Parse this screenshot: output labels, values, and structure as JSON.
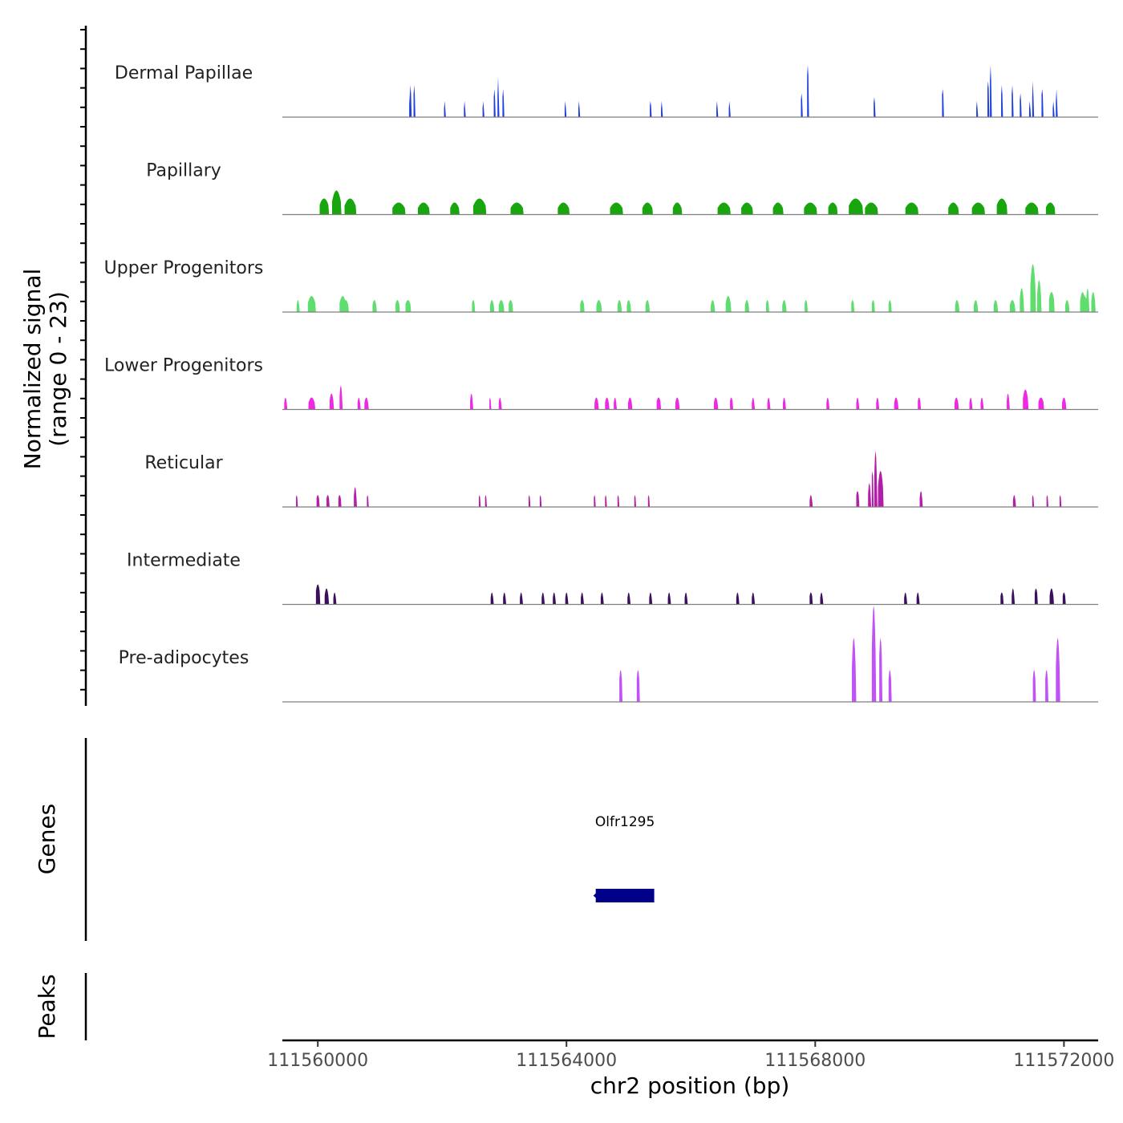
{
  "chart_data": {
    "type": "area",
    "title": "",
    "ylabel_line1": "Normalized signal",
    "ylabel_line2": "(range 0 - 23)",
    "xlabel": "chr2 position (bp)",
    "xlim": [
      111559430,
      111572550
    ],
    "ylim": [
      0,
      23
    ],
    "x_ticks": [
      111560000,
      111564000,
      111568000,
      111572000
    ],
    "x_tick_labels": [
      "111560000",
      "111564000",
      "111568000",
      "111572000"
    ],
    "tracks": [
      {
        "name": "Dermal Papillae",
        "color": "#1e3fdc",
        "peaks": [
          [
            111561480,
            30,
            4
          ],
          [
            111561490,
            25,
            8
          ],
          [
            111561550,
            25,
            8
          ],
          [
            111562040,
            20,
            4
          ],
          [
            111562360,
            20,
            4
          ],
          [
            111562660,
            20,
            4
          ],
          [
            111562840,
            25,
            7
          ],
          [
            111562900,
            20,
            10
          ],
          [
            111562980,
            25,
            7
          ],
          [
            111563980,
            20,
            4
          ],
          [
            111564200,
            20,
            4
          ],
          [
            111565350,
            25,
            4
          ],
          [
            111565530,
            20,
            4
          ],
          [
            111566420,
            20,
            4
          ],
          [
            111566620,
            20,
            4
          ],
          [
            111567780,
            25,
            6
          ],
          [
            111567880,
            30,
            13
          ],
          [
            111568950,
            25,
            5
          ],
          [
            111570050,
            30,
            7
          ],
          [
            111570600,
            20,
            4
          ],
          [
            111570780,
            30,
            9
          ],
          [
            111570820,
            25,
            13
          ],
          [
            111571000,
            25,
            8
          ],
          [
            111571170,
            25,
            8
          ],
          [
            111571300,
            25,
            6
          ],
          [
            111571450,
            20,
            4
          ],
          [
            111571500,
            20,
            9
          ],
          [
            111571650,
            30,
            7
          ],
          [
            111571830,
            20,
            4
          ],
          [
            111571880,
            20,
            7
          ]
        ]
      },
      {
        "name": "Papillary",
        "color": "#18a50e",
        "peaks": [
          [
            111560100,
            150,
            4
          ],
          [
            111560300,
            140,
            6
          ],
          [
            111560520,
            180,
            4
          ],
          [
            111561300,
            200,
            3
          ],
          [
            111561700,
            180,
            3
          ],
          [
            111562200,
            140,
            3
          ],
          [
            111562600,
            200,
            4
          ],
          [
            111563200,
            200,
            3
          ],
          [
            111563950,
            180,
            3
          ],
          [
            111564800,
            200,
            3
          ],
          [
            111565300,
            160,
            3
          ],
          [
            111565780,
            140,
            3
          ],
          [
            111566530,
            200,
            3
          ],
          [
            111566900,
            180,
            3
          ],
          [
            111567400,
            160,
            3
          ],
          [
            111567920,
            200,
            3
          ],
          [
            111568280,
            150,
            3
          ],
          [
            111568650,
            220,
            4
          ],
          [
            111568900,
            200,
            3
          ],
          [
            111569550,
            200,
            3
          ],
          [
            111570220,
            160,
            3
          ],
          [
            111570620,
            200,
            3
          ],
          [
            111571000,
            170,
            4
          ],
          [
            111571480,
            200,
            3
          ],
          [
            111571780,
            150,
            3
          ]
        ]
      },
      {
        "name": "Upper Progenitors",
        "color": "#5fdd6e",
        "peaks": [
          [
            111559680,
            40,
            3
          ],
          [
            111559900,
            120,
            4
          ],
          [
            111560400,
            100,
            4
          ],
          [
            111560450,
            80,
            3
          ],
          [
            111560910,
            60,
            3
          ],
          [
            111561280,
            70,
            3
          ],
          [
            111561450,
            90,
            3
          ],
          [
            111562500,
            50,
            3
          ],
          [
            111562800,
            60,
            3
          ],
          [
            111562950,
            80,
            3
          ],
          [
            111563100,
            70,
            3
          ],
          [
            111564250,
            70,
            3
          ],
          [
            111564520,
            80,
            3
          ],
          [
            111564850,
            60,
            3
          ],
          [
            111565000,
            60,
            3
          ],
          [
            111565300,
            60,
            3
          ],
          [
            111566350,
            60,
            3
          ],
          [
            111566600,
            80,
            4
          ],
          [
            111566900,
            60,
            3
          ],
          [
            111567230,
            50,
            3
          ],
          [
            111567500,
            60,
            3
          ],
          [
            111567850,
            50,
            3
          ],
          [
            111568600,
            50,
            3
          ],
          [
            111568930,
            50,
            3
          ],
          [
            111569200,
            50,
            3
          ],
          [
            111570280,
            60,
            3
          ],
          [
            111570580,
            60,
            3
          ],
          [
            111570900,
            60,
            3
          ],
          [
            111571170,
            80,
            3
          ],
          [
            111571320,
            60,
            6
          ],
          [
            111571500,
            80,
            12
          ],
          [
            111571600,
            60,
            8
          ],
          [
            111571800,
            90,
            5
          ],
          [
            111572050,
            60,
            3
          ],
          [
            111572300,
            80,
            5
          ],
          [
            111572380,
            40,
            6
          ],
          [
            111572330,
            80,
            4
          ],
          [
            111572470,
            60,
            5
          ]
        ]
      },
      {
        "name": "Lower Progenitors",
        "color": "#ee28e3",
        "peaks": [
          [
            111559480,
            40,
            3
          ],
          [
            111559900,
            100,
            3
          ],
          [
            111560220,
            60,
            4
          ],
          [
            111560370,
            40,
            6
          ],
          [
            111560660,
            40,
            3
          ],
          [
            111560780,
            60,
            3
          ],
          [
            111562470,
            40,
            4
          ],
          [
            111562770,
            30,
            3
          ],
          [
            111562930,
            40,
            3
          ],
          [
            111564480,
            60,
            3
          ],
          [
            111564650,
            60,
            3
          ],
          [
            111564780,
            40,
            3
          ],
          [
            111565020,
            60,
            3
          ],
          [
            111565480,
            70,
            3
          ],
          [
            111565780,
            60,
            3
          ],
          [
            111566400,
            60,
            3
          ],
          [
            111566650,
            50,
            3
          ],
          [
            111567000,
            40,
            3
          ],
          [
            111567250,
            40,
            3
          ],
          [
            111567500,
            40,
            3
          ],
          [
            111568200,
            40,
            3
          ],
          [
            111568680,
            40,
            3
          ],
          [
            111569000,
            40,
            3
          ],
          [
            111569300,
            60,
            3
          ],
          [
            111569670,
            50,
            3
          ],
          [
            111570270,
            60,
            3
          ],
          [
            111570500,
            40,
            3
          ],
          [
            111570680,
            40,
            3
          ],
          [
            111571100,
            40,
            4
          ],
          [
            111571380,
            80,
            5
          ],
          [
            111571630,
            90,
            3
          ],
          [
            111572000,
            60,
            3
          ]
        ]
      },
      {
        "name": "Reticular",
        "color": "#b31ea8",
        "peaks": [
          [
            111559660,
            30,
            3
          ],
          [
            111560000,
            50,
            3
          ],
          [
            111560160,
            50,
            3
          ],
          [
            111560350,
            50,
            3
          ],
          [
            111560600,
            40,
            5
          ],
          [
            111560800,
            30,
            3
          ],
          [
            111562600,
            30,
            3
          ],
          [
            111562700,
            30,
            3
          ],
          [
            111563400,
            30,
            3
          ],
          [
            111563580,
            30,
            3
          ],
          [
            111564450,
            30,
            3
          ],
          [
            111564630,
            30,
            3
          ],
          [
            111564830,
            30,
            3
          ],
          [
            111565100,
            30,
            3
          ],
          [
            111565320,
            30,
            3
          ],
          [
            111567930,
            40,
            3
          ],
          [
            111568680,
            50,
            4
          ],
          [
            111568870,
            40,
            6
          ],
          [
            111568920,
            35,
            9
          ],
          [
            111568970,
            40,
            14
          ],
          [
            111569050,
            80,
            9
          ],
          [
            111569700,
            40,
            4
          ],
          [
            111571200,
            40,
            3
          ],
          [
            111571500,
            30,
            3
          ],
          [
            111571730,
            30,
            3
          ],
          [
            111571940,
            30,
            3
          ]
        ]
      },
      {
        "name": "Intermediate",
        "color": "#3b0f5e",
        "peaks": [
          [
            111560000,
            70,
            5
          ],
          [
            111560140,
            60,
            4
          ],
          [
            111560270,
            40,
            3
          ],
          [
            111562800,
            40,
            3
          ],
          [
            111563000,
            40,
            3
          ],
          [
            111563270,
            40,
            3
          ],
          [
            111563620,
            40,
            3
          ],
          [
            111563800,
            40,
            3
          ],
          [
            111564000,
            40,
            3
          ],
          [
            111564250,
            40,
            3
          ],
          [
            111564570,
            40,
            3
          ],
          [
            111565000,
            40,
            3
          ],
          [
            111565350,
            40,
            3
          ],
          [
            111565650,
            40,
            3
          ],
          [
            111565920,
            40,
            3
          ],
          [
            111566750,
            40,
            3
          ],
          [
            111567000,
            40,
            3
          ],
          [
            111567930,
            50,
            3
          ],
          [
            111568100,
            40,
            3
          ],
          [
            111569450,
            40,
            3
          ],
          [
            111569650,
            40,
            3
          ],
          [
            111571000,
            50,
            3
          ],
          [
            111571180,
            40,
            4
          ],
          [
            111571550,
            50,
            4
          ],
          [
            111571800,
            60,
            4
          ],
          [
            111572000,
            50,
            3
          ]
        ]
      },
      {
        "name": "Pre-adipocytes",
        "color": "#c153f6",
        "peaks": [
          [
            111564870,
            50,
            8
          ],
          [
            111565150,
            50,
            8
          ],
          [
            111568620,
            60,
            16
          ],
          [
            111568940,
            60,
            24
          ],
          [
            111569050,
            50,
            16
          ],
          [
            111569200,
            50,
            8
          ],
          [
            111571520,
            50,
            8
          ],
          [
            111571720,
            50,
            8
          ],
          [
            111571900,
            60,
            16
          ]
        ]
      }
    ],
    "genes_label": "Genes",
    "peaks_label": "Peaks",
    "genes": [
      {
        "name": "Olfr1295",
        "start": 111564470,
        "end": 111565410,
        "strand": "-",
        "color": "#00008b"
      }
    ]
  }
}
